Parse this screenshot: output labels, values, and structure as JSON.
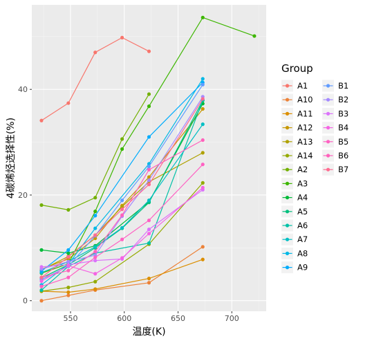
{
  "chart_data": {
    "type": "line",
    "title": "",
    "xlabel": "温度(K)",
    "ylabel": "4碳烯烃选择性(%)",
    "xlim": [
      514,
      732
    ],
    "ylim": [
      -2,
      56
    ],
    "x_ticks": [
      550,
      600,
      650,
      700
    ],
    "y_ticks": [
      0,
      20,
      40
    ],
    "grid": true,
    "legend": {
      "title": "Group",
      "position": "right",
      "columns": 2
    },
    "series": [
      {
        "name": "A1",
        "color": "#F8766D",
        "x": [
          523,
          548,
          573,
          598,
          623
        ],
        "y": [
          34.1,
          37.4,
          47.0,
          49.8,
          47.2
        ]
      },
      {
        "name": "A10",
        "color": "#EC8239",
        "x": [
          523,
          548,
          573,
          623,
          673
        ],
        "y": [
          0.0,
          1.0,
          2.0,
          3.4,
          10.2
        ]
      },
      {
        "name": "A11",
        "color": "#DB8E00",
        "x": [
          523,
          548,
          573,
          623,
          673
        ],
        "y": [
          1.8,
          1.6,
          2.2,
          4.2,
          7.8
        ]
      },
      {
        "name": "A12",
        "color": "#C79800",
        "x": [
          523,
          548,
          573,
          598,
          623,
          673
        ],
        "y": [
          6.0,
          7.9,
          11.8,
          18.0,
          23.4,
          36.3
        ]
      },
      {
        "name": "A13",
        "color": "#AFA100",
        "x": [
          523,
          548,
          573,
          598,
          623,
          673
        ],
        "y": [
          5.8,
          8.4,
          12.4,
          17.8,
          22.5,
          28.0
        ]
      },
      {
        "name": "A14",
        "color": "#94AA00",
        "x": [
          523,
          548,
          573,
          623,
          673
        ],
        "y": [
          1.8,
          2.5,
          3.6,
          10.7,
          22.3
        ]
      },
      {
        "name": "A2",
        "color": "#72B000",
        "x": [
          523,
          548,
          573,
          598,
          623
        ],
        "y": [
          18.1,
          17.2,
          19.5,
          30.6,
          39.1
        ]
      },
      {
        "name": "A3",
        "color": "#3DB600",
        "x": [
          523,
          548,
          573,
          598,
          623,
          673,
          721
        ],
        "y": [
          5.2,
          7.0,
          16.9,
          28.7,
          36.8,
          53.6,
          50.1
        ]
      },
      {
        "name": "A4",
        "color": "#00BA38",
        "x": [
          523,
          548,
          573,
          623,
          673
        ],
        "y": [
          9.6,
          9.0,
          10.4,
          18.7,
          37.3
        ]
      },
      {
        "name": "A5",
        "color": "#00BF7D",
        "x": [
          523,
          548,
          573,
          598,
          623,
          673
        ],
        "y": [
          4.3,
          6.8,
          10.0,
          13.7,
          18.6,
          37.9
        ]
      },
      {
        "name": "A6",
        "color": "#00C1A7",
        "x": [
          523,
          548,
          573,
          623,
          673
        ],
        "y": [
          2.0,
          6.5,
          9.0,
          10.9,
          38.0
        ]
      },
      {
        "name": "A7",
        "color": "#00BFC4",
        "x": [
          523,
          548,
          573,
          598,
          623,
          673
        ],
        "y": [
          5.3,
          7.4,
          10.2,
          13.8,
          19.0,
          33.4
        ]
      },
      {
        "name": "A8",
        "color": "#00B8E5",
        "x": [
          523,
          548,
          573,
          623,
          673
        ],
        "y": [
          3.0,
          6.9,
          13.7,
          25.9,
          42.0
        ]
      },
      {
        "name": "A9",
        "color": "#00ACFC",
        "x": [
          523,
          548,
          573,
          623,
          673
        ],
        "y": [
          5.6,
          9.6,
          16.1,
          31.0,
          41.3
        ]
      },
      {
        "name": "B1",
        "color": "#619CFF",
        "x": [
          523,
          548,
          573,
          598,
          623,
          673
        ],
        "y": [
          4.0,
          6.5,
          12.3,
          19.0,
          25.4,
          40.9
        ]
      },
      {
        "name": "B2",
        "color": "#A58AFF",
        "x": [
          523,
          548,
          573,
          598,
          623,
          673
        ],
        "y": [
          6.0,
          7.4,
          8.6,
          16.0,
          22.8,
          38.6
        ]
      },
      {
        "name": "B3",
        "color": "#DB72FB",
        "x": [
          523,
          548,
          573,
          598,
          623,
          673
        ],
        "y": [
          6.4,
          6.8,
          7.6,
          7.9,
          13.5,
          21.0
        ]
      },
      {
        "name": "B4",
        "color": "#F564E3",
        "x": [
          523,
          548,
          573,
          598,
          623,
          673
        ],
        "y": [
          3.7,
          6.6,
          5.1,
          8.1,
          12.7,
          21.4
        ]
      },
      {
        "name": "B5",
        "color": "#FF61C3",
        "x": [
          523,
          548,
          573,
          598,
          623,
          673
        ],
        "y": [
          2.7,
          4.4,
          8.2,
          11.6,
          15.2,
          25.8
        ]
      },
      {
        "name": "B6",
        "color": "#FF62BC",
        "x": [
          523,
          548,
          573,
          598,
          623,
          673
        ],
        "y": [
          4.4,
          5.7,
          9.3,
          16.2,
          24.8,
          30.4
        ]
      },
      {
        "name": "B7",
        "color": "#FF6C91",
        "x": [
          523,
          548,
          573,
          598,
          623,
          673
        ],
        "y": [
          4.4,
          8.3,
          12.4,
          17.3,
          22.0,
          38.2
        ]
      }
    ]
  }
}
